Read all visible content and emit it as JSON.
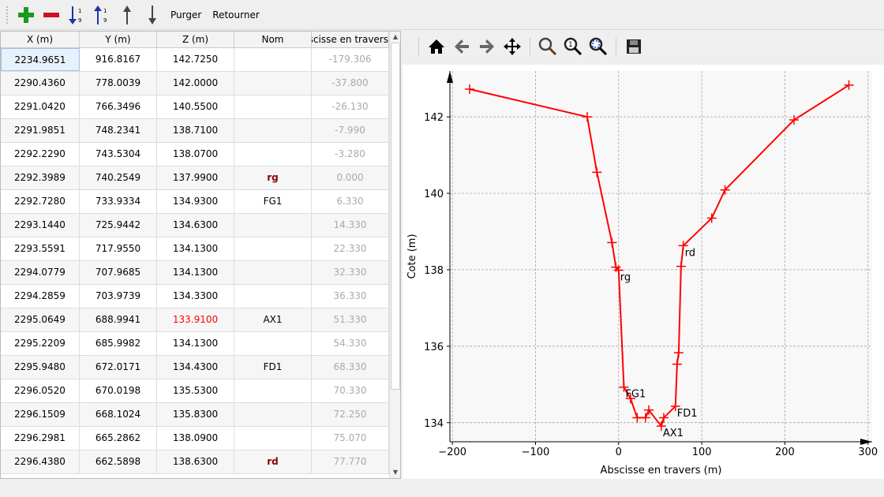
{
  "toolbar": {
    "items": [
      {
        "name": "add-row-button",
        "icon": "plus-icon"
      },
      {
        "name": "delete-row-button",
        "icon": "minus-icon"
      },
      {
        "name": "sort-ascending-button",
        "icon": "sort-ascending-icon"
      },
      {
        "name": "sort-descending-button",
        "icon": "sort-descending-icon"
      },
      {
        "name": "move-up-button",
        "icon": "arrow-up-icon"
      },
      {
        "name": "move-down-button",
        "icon": "arrow-down-icon"
      }
    ],
    "purge_label": "Purger",
    "reverse_label": "Retourner"
  },
  "table": {
    "columns": [
      "X (m)",
      "Y (m)",
      "Z (m)",
      "Nom",
      "Abscisse en travers"
    ],
    "rows": [
      [
        "2234.9651",
        "916.8167",
        "142.7250",
        "",
        "-179.306"
      ],
      [
        "2290.4360",
        "778.0039",
        "142.0000",
        "",
        "-37.800"
      ],
      [
        "2291.0420",
        "766.3496",
        "140.5500",
        "",
        "-26.130"
      ],
      [
        "2291.9851",
        "748.2341",
        "138.7100",
        "",
        "-7.990"
      ],
      [
        "2292.2290",
        "743.5304",
        "138.0700",
        "",
        "-3.280"
      ],
      [
        "2292.3989",
        "740.2549",
        "137.9900",
        "rg",
        "0.000"
      ],
      [
        "2292.7280",
        "733.9334",
        "134.9300",
        "FG1",
        "6.330"
      ],
      [
        "2293.1440",
        "725.9442",
        "134.6300",
        "",
        "14.330"
      ],
      [
        "2293.5591",
        "717.9550",
        "134.1300",
        "",
        "22.330"
      ],
      [
        "2294.0779",
        "707.9685",
        "134.1300",
        "",
        "32.330"
      ],
      [
        "2294.2859",
        "703.9739",
        "134.3300",
        "",
        "36.330"
      ],
      [
        "2295.0649",
        "688.9941",
        "133.9100",
        "AX1",
        "51.330"
      ],
      [
        "2295.2209",
        "685.9982",
        "134.1300",
        "",
        "54.330"
      ],
      [
        "2295.9480",
        "672.0171",
        "134.4300",
        "FD1",
        "68.330"
      ],
      [
        "2296.0520",
        "670.0198",
        "135.5300",
        "",
        "70.330"
      ],
      [
        "2296.1509",
        "668.1024",
        "135.8300",
        "",
        "72.250"
      ],
      [
        "2296.2981",
        "665.2862",
        "138.0900",
        "",
        "75.070"
      ],
      [
        "2296.4380",
        "662.5898",
        "138.6300",
        "rd",
        "77.770"
      ]
    ],
    "highlight_color": "#ff0000",
    "bank_label_color": "#8b0000",
    "abscisse_color": "#aaaaaa"
  },
  "plot_toolbar": {
    "items": [
      "home-icon",
      "back-icon",
      "forward-icon",
      "pan-icon",
      "zoom-icon",
      "zoom-1-icon",
      "zoom-fit-icon",
      "save-icon"
    ]
  },
  "chart_data": {
    "type": "line",
    "xlabel": "Abscisse en travers (m)",
    "ylabel": "Cote (m)",
    "xlim": [
      -203,
      305
    ],
    "ylim": [
      133.5,
      143.2
    ],
    "xticks": [
      -200,
      -100,
      0,
      100,
      200,
      300
    ],
    "yticks": [
      134,
      136,
      138,
      140,
      142
    ],
    "grid": true,
    "color": "#ff0000",
    "marker": "+",
    "x": [
      -179.306,
      -37.8,
      -26.13,
      -7.99,
      -3.28,
      0,
      6.33,
      14.33,
      22.33,
      32.33,
      36.33,
      51.33,
      54.33,
      68.33,
      70.33,
      72.25,
      75.07,
      77.77,
      112,
      128,
      211,
      277
    ],
    "y": [
      142.725,
      142,
      140.55,
      138.71,
      138.07,
      137.99,
      134.93,
      134.63,
      134.13,
      134.13,
      134.33,
      133.91,
      134.13,
      134.43,
      135.53,
      135.83,
      138.09,
      138.63,
      139.35,
      140.09,
      141.92,
      142.83
    ],
    "annotations": [
      {
        "text": "rg",
        "x": 0,
        "y": 137.99
      },
      {
        "text": "FG1",
        "x": 6.33,
        "y": 134.93
      },
      {
        "text": "AX1",
        "x": 51.33,
        "y": 133.91
      },
      {
        "text": "FD1",
        "x": 68.33,
        "y": 134.43
      },
      {
        "text": "rd",
        "x": 77.77,
        "y": 138.63
      }
    ]
  }
}
